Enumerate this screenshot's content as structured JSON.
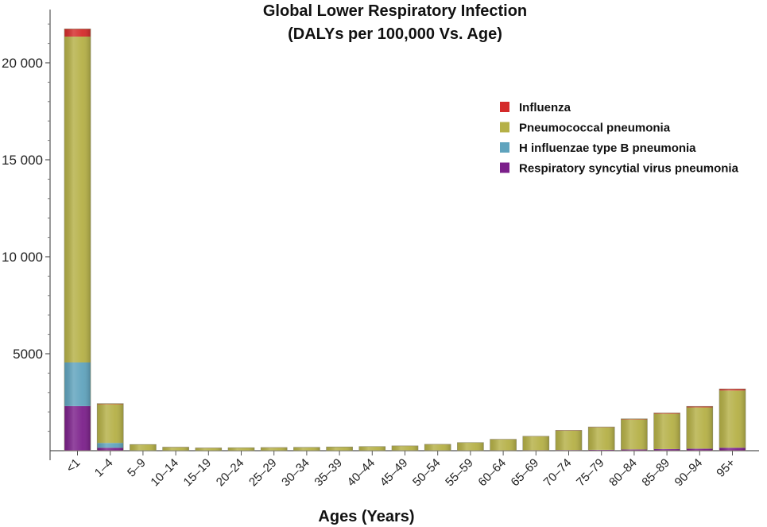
{
  "chart_data": {
    "type": "bar",
    "stacked": true,
    "title": [
      "Global Lower Respiratory Infection",
      "(DALYs per 100,000 Vs. Age)"
    ],
    "xlabel": "Ages (Years)",
    "ylabel": "",
    "ylim": [
      0,
      22500
    ],
    "yticks": [
      5000,
      10000,
      15000,
      20000
    ],
    "ytick_labels": [
      "5000",
      "10 000",
      "15 000",
      "20 000"
    ],
    "categories": [
      "<1",
      "1–4",
      "5–9",
      "10–14",
      "15–19",
      "20–24",
      "25–29",
      "30–34",
      "35–39",
      "40–44",
      "45–49",
      "50–54",
      "55–59",
      "60–64",
      "65–69",
      "70–74",
      "75–79",
      "80–84",
      "85–89",
      "90–94",
      "95+"
    ],
    "legend_position": "top-right",
    "series": [
      {
        "name": "Respiratory syncytial virus pneumonia",
        "color": "#7b1f8a",
        "values": [
          2300,
          150,
          5,
          5,
          5,
          5,
          5,
          5,
          5,
          5,
          10,
          10,
          10,
          15,
          20,
          30,
          40,
          60,
          80,
          100,
          150
        ]
      },
      {
        "name": "H influenzae type B pneumonia",
        "color": "#5fa3bd",
        "values": [
          2250,
          250,
          10,
          5,
          5,
          5,
          5,
          5,
          5,
          5,
          5,
          5,
          5,
          5,
          5,
          5,
          5,
          5,
          5,
          5,
          5
        ]
      },
      {
        "name": "Pneumococcal pneumonia",
        "color": "#b5b046",
        "values": [
          16800,
          2000,
          300,
          170,
          130,
          140,
          150,
          160,
          180,
          200,
          230,
          310,
          400,
          560,
          710,
          1000,
          1160,
          1550,
          1820,
          2130,
          2950
        ]
      },
      {
        "name": "Influenza",
        "color": "#d42a2a",
        "values": [
          400,
          30,
          5,
          5,
          5,
          5,
          5,
          5,
          5,
          5,
          5,
          5,
          5,
          10,
          10,
          15,
          20,
          30,
          40,
          50,
          80
        ]
      }
    ],
    "legend_order": [
      "Influenza",
      "Pneumococcal pneumonia",
      "H influenzae type B pneumonia",
      "Respiratory syncytial virus pneumonia"
    ]
  }
}
